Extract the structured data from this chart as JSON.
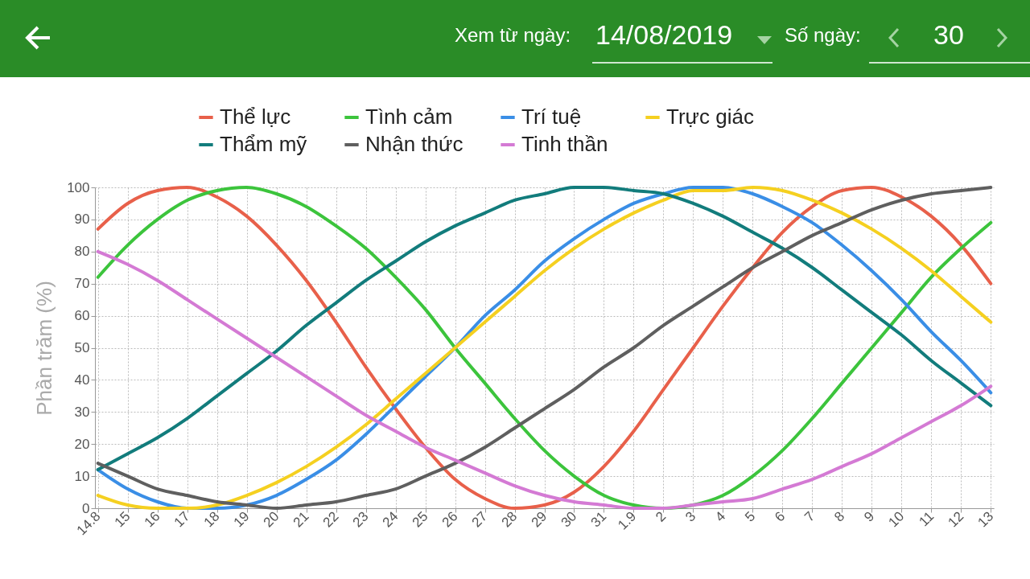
{
  "chart_data": {
    "type": "line",
    "ylabel": "Phần trăm (%)",
    "annotations": [
      "Xem từ ngày:",
      "14/08/2019",
      "Số ngày:",
      "30"
    ],
    "categories": [
      "14.8",
      "15",
      "16",
      "17",
      "18",
      "19",
      "20",
      "21",
      "22",
      "23",
      "24",
      "25",
      "26",
      "27",
      "28",
      "29",
      "30",
      "31",
      "1.9",
      "2",
      "3",
      "4",
      "5",
      "6",
      "7",
      "8",
      "9",
      "10",
      "11",
      "12",
      "13"
    ],
    "ylim": [
      0,
      100
    ],
    "yticks": [
      0,
      10,
      20,
      30,
      40,
      50,
      60,
      70,
      80,
      90,
      100
    ],
    "grid": true,
    "legend": "top",
    "marker": "none",
    "line_style": "solid",
    "series": [
      {
        "name": "Thể lực",
        "color": "#e8604a",
        "values": [
          87,
          95,
          99,
          100,
          97,
          91,
          82,
          71,
          58,
          44,
          31,
          19,
          9,
          3,
          0,
          1,
          5,
          13,
          24,
          37,
          50,
          63,
          75,
          86,
          94,
          99,
          100,
          97,
          91,
          82,
          70
        ]
      },
      {
        "name": "Tình cảm",
        "color": "#3cc43c",
        "values": [
          72,
          82,
          90,
          96,
          99,
          100,
          98,
          94,
          88,
          81,
          72,
          62,
          50,
          39,
          28,
          18,
          10,
          4,
          1,
          0,
          1,
          4,
          10,
          18,
          28,
          39,
          50,
          61,
          72,
          81,
          89
        ]
      },
      {
        "name": "Trí tuệ",
        "color": "#3a8ee6",
        "values": [
          12,
          6,
          2,
          0,
          0,
          1,
          4,
          9,
          15,
          23,
          32,
          41,
          50,
          60,
          68,
          77,
          84,
          90,
          95,
          98,
          100,
          100,
          98,
          94,
          89,
          82,
          74,
          65,
          55,
          46,
          36
        ]
      },
      {
        "name": "Trực giác",
        "color": "#f5d020",
        "values": [
          4,
          1,
          0,
          0,
          1,
          4,
          8,
          13,
          19,
          26,
          34,
          42,
          50,
          58,
          66,
          74,
          81,
          87,
          92,
          96,
          99,
          99,
          100,
          99,
          96,
          92,
          87,
          81,
          74,
          66,
          58
        ]
      },
      {
        "name": "Thẩm mỹ",
        "color": "#127c7c",
        "values": [
          12,
          17,
          22,
          28,
          35,
          42,
          49,
          57,
          64,
          71,
          77,
          83,
          88,
          92,
          96,
          98,
          100,
          100,
          99,
          98,
          95,
          91,
          86,
          81,
          75,
          68,
          61,
          54,
          46,
          39,
          32
        ]
      },
      {
        "name": "Nhận thức",
        "color": "#5f5f5f",
        "values": [
          14,
          10,
          6,
          4,
          2,
          1,
          0,
          1,
          2,
          4,
          6,
          10,
          14,
          19,
          25,
          31,
          37,
          44,
          50,
          57,
          63,
          69,
          75,
          80,
          85,
          89,
          93,
          96,
          98,
          99,
          100
        ]
      },
      {
        "name": "Tinh thần",
        "color": "#d47ad4",
        "values": [
          80,
          76,
          71,
          65,
          59,
          53,
          47,
          41,
          35,
          29,
          24,
          19,
          15,
          11,
          7,
          4,
          2,
          1,
          0,
          0,
          1,
          2,
          3,
          6,
          9,
          13,
          17,
          22,
          27,
          32,
          38
        ]
      }
    ]
  }
}
